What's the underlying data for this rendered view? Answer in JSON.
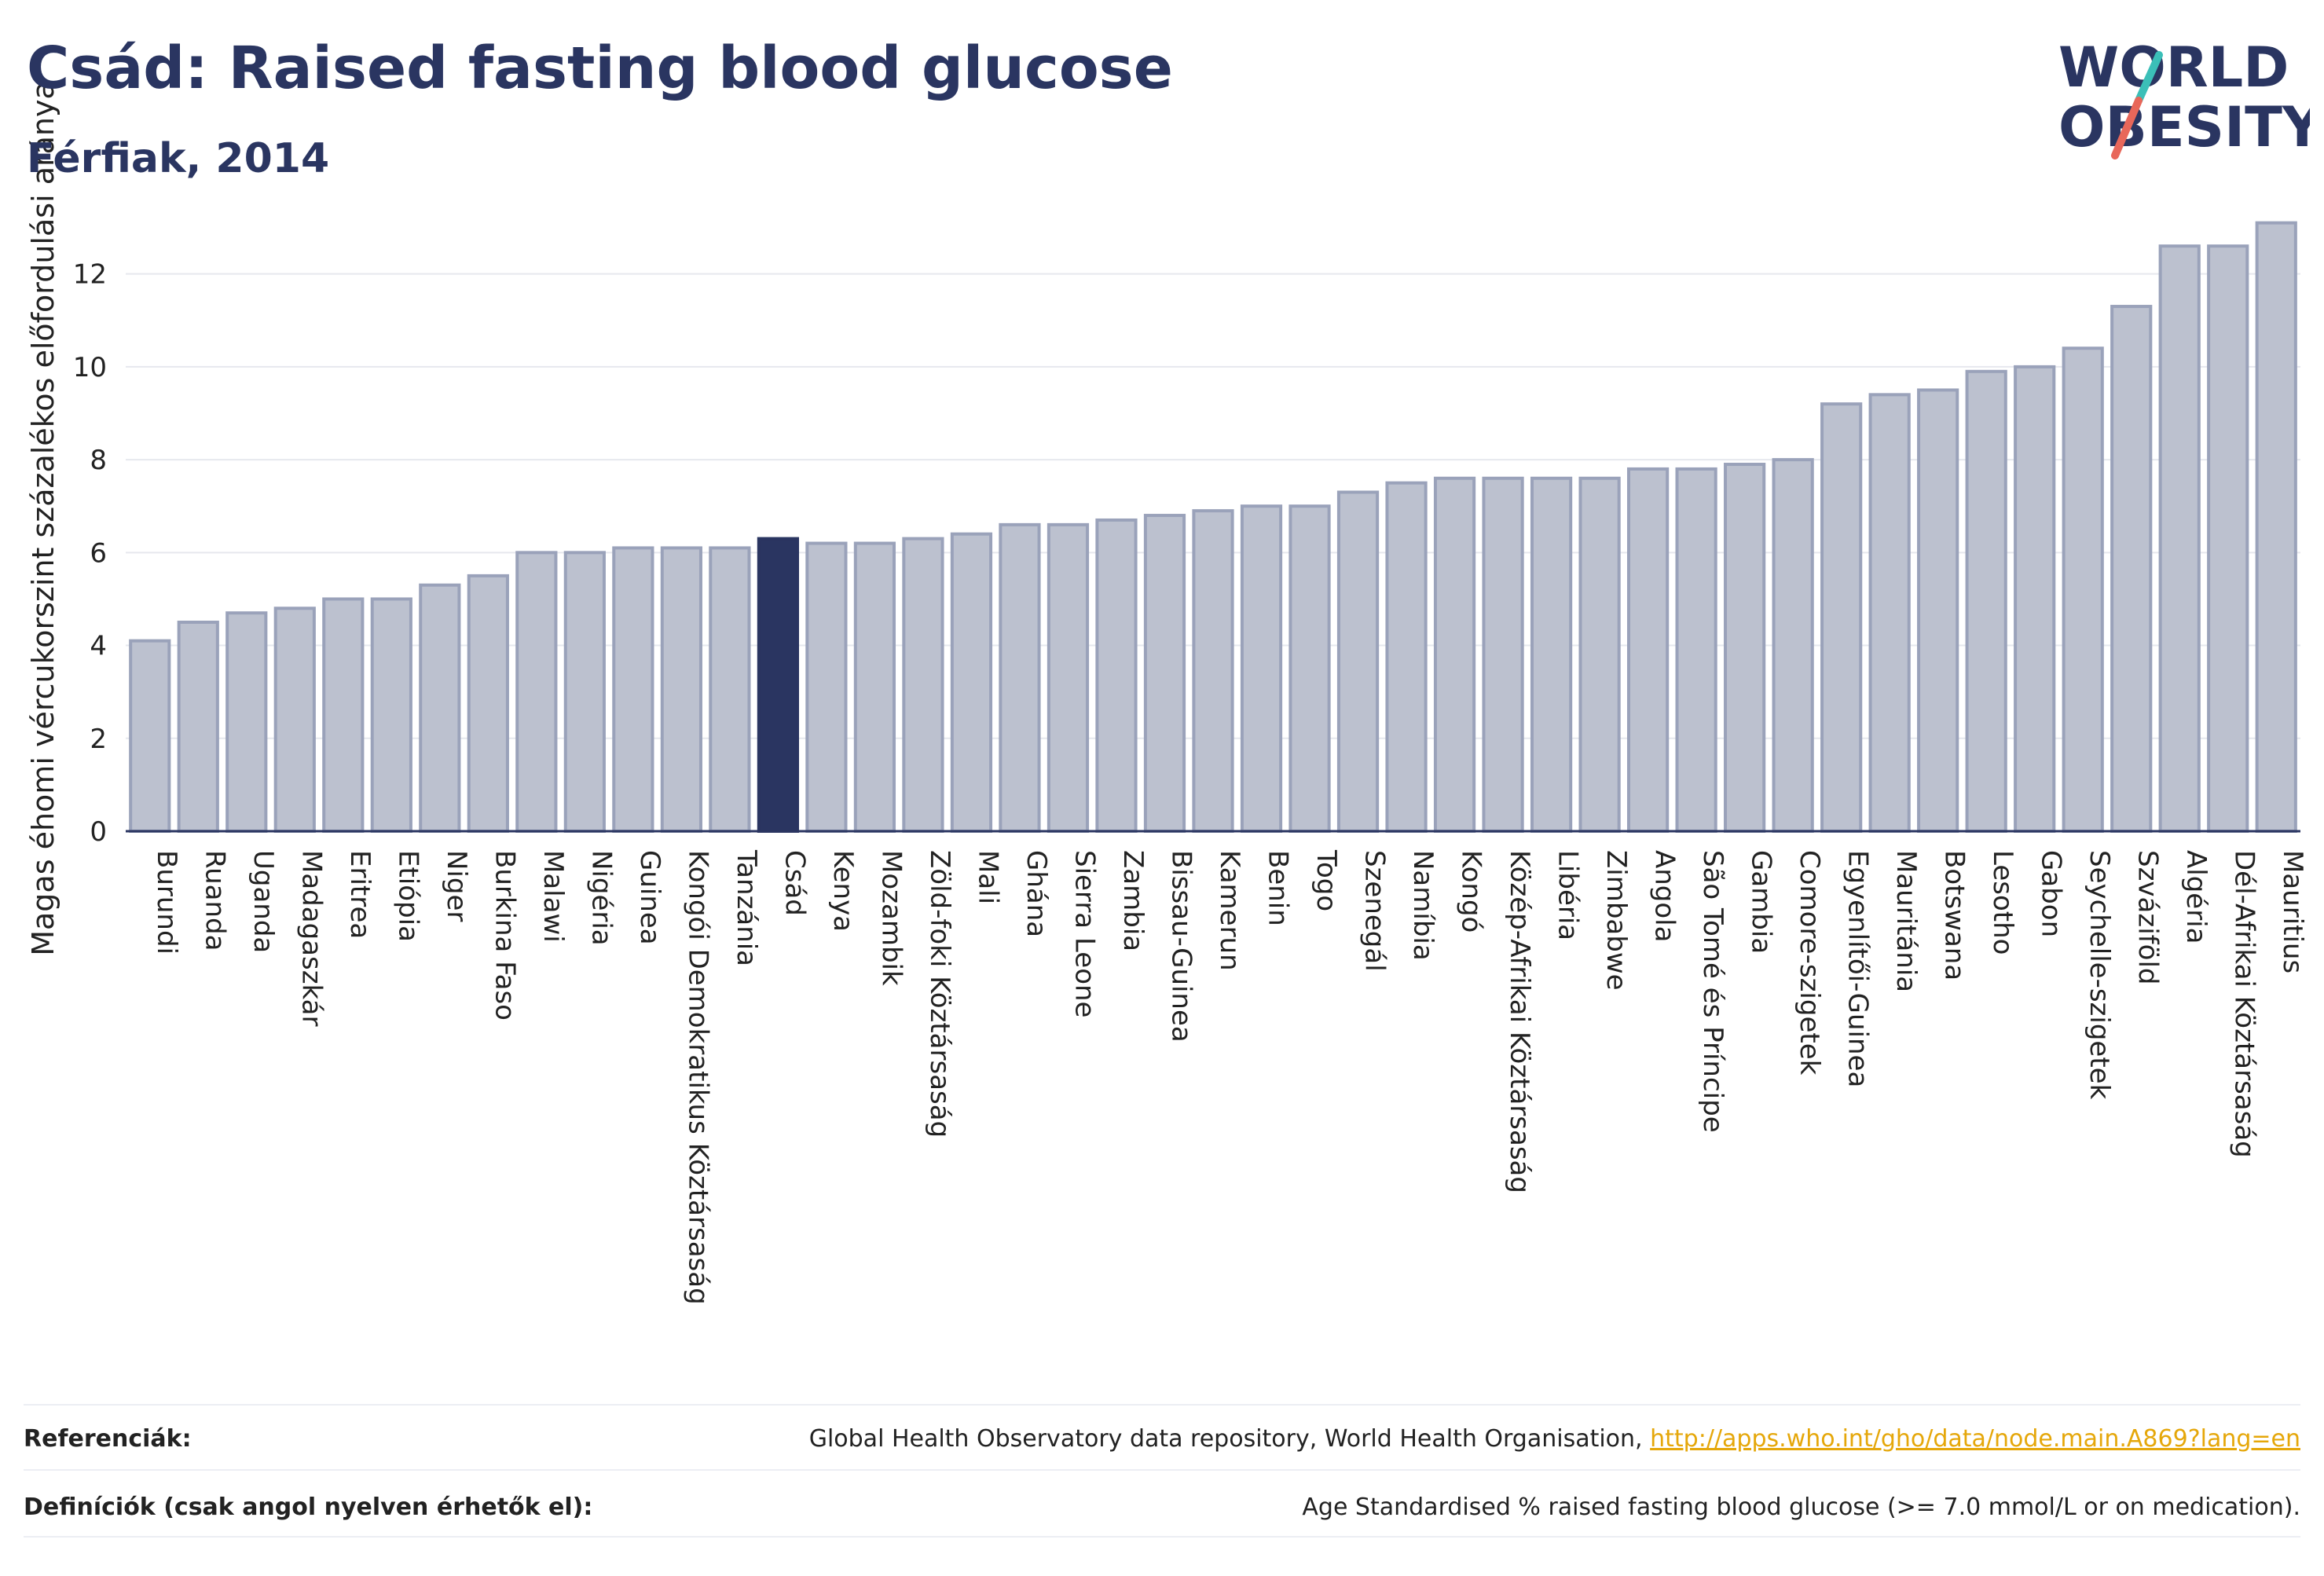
{
  "title": "Csád: Raised fasting blood glucose",
  "subtitle": "Férfiak, 2014",
  "logo": {
    "line1": "WORLD",
    "line2": "OBESITY",
    "slash_colors": [
      "#3bbfb8",
      "#e8675a"
    ]
  },
  "colors": {
    "bar": "#bcc1cf",
    "bar_edge": "#9aa2ba",
    "highlight": "#2a3561",
    "grid": "#e6e8ee",
    "axis": "#2a3561"
  },
  "chart_data": {
    "type": "bar",
    "ylabel": "Magas éhomi vércukorszint százalékos előfordulási aránya",
    "xlabel": "",
    "ylim": [
      0,
      13.5
    ],
    "yticks": [
      0,
      2,
      4,
      6,
      8,
      10,
      12
    ],
    "grid": true,
    "highlight": "Csád",
    "categories": [
      "Burundi",
      "Ruanda",
      "Uganda",
      "Madagaszkár",
      "Eritrea",
      "Etiópia",
      "Niger",
      "Burkina Faso",
      "Malawi",
      "Nigéria",
      "Guinea",
      "Kongói Demokratikus Köztársaság",
      "Tanzánia",
      "Csád",
      "Kenya",
      "Mozambik",
      "Zöld-foki Köztársaság",
      "Mali",
      "Ghána",
      "Sierra Leone",
      "Zambia",
      "Bissau-Guinea",
      "Kamerun",
      "Benin",
      "Togo",
      "Szenegál",
      "Namíbia",
      "Kongó",
      "Közép-Afrikai Köztársaság",
      "Libéria",
      "Zimbabwe",
      "Angola",
      "São Tomé és Príncipe",
      "Gambia",
      "Comore-szigetek",
      "Egyenlítői-Guinea",
      "Mauritánia",
      "Botswana",
      "Lesotho",
      "Gabon",
      "Seychelle-szigetek",
      "Szváziföld",
      "Algéria",
      "Dél-Afrikai Köztársaság",
      "Mauritius"
    ],
    "values": [
      4.1,
      4.5,
      4.7,
      4.8,
      5.0,
      5.0,
      5.3,
      5.5,
      6.0,
      6.0,
      6.1,
      6.1,
      6.1,
      6.3,
      6.2,
      6.2,
      6.3,
      6.4,
      6.6,
      6.6,
      6.7,
      6.8,
      6.9,
      7.0,
      7.0,
      7.3,
      7.5,
      7.6,
      7.6,
      7.6,
      7.6,
      7.8,
      7.8,
      7.9,
      8.0,
      9.2,
      9.4,
      9.5,
      9.9,
      10.0,
      10.4,
      11.3,
      12.6,
      12.6,
      13.1
    ]
  },
  "footer": {
    "refs_label": "Referenciák:",
    "refs_text": "Global Health Observatory data repository, World Health Organisation,",
    "refs_link": "http://apps.who.int/gho/data/node.main.A869?lang=en",
    "defs_label": "Definíciók (csak angol nyelven érhetők el):",
    "defs_text": "Age Standardised % raised fasting blood glucose (>= 7.0 mmol/L or on medication)."
  }
}
